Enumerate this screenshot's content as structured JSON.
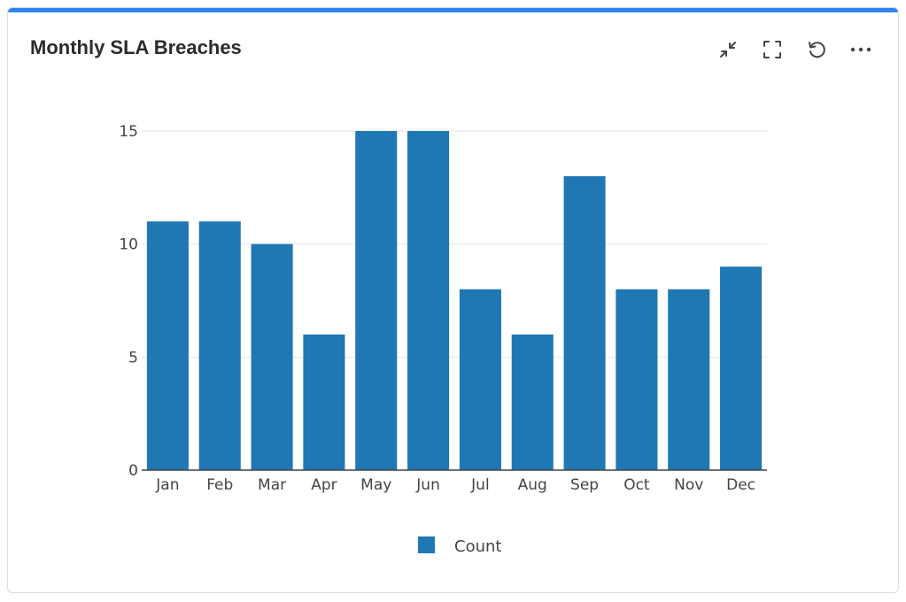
{
  "card": {
    "title": "Monthly SLA Breaches",
    "accent_color": "#2f86f0"
  },
  "toolbar": {
    "items": [
      {
        "icon": "collapse-icon",
        "label": "Collapse"
      },
      {
        "icon": "fullscreen-icon",
        "label": "Fullscreen"
      },
      {
        "icon": "refresh-icon",
        "label": "Refresh"
      },
      {
        "icon": "more-icon",
        "label": "More options"
      }
    ]
  },
  "chart_data": {
    "type": "bar",
    "categories": [
      "Jan",
      "Feb",
      "Mar",
      "Apr",
      "May",
      "Jun",
      "Jul",
      "Aug",
      "Sep",
      "Oct",
      "Nov",
      "Dec"
    ],
    "series": [
      {
        "name": "Count",
        "values": [
          11,
          11,
          10,
          6,
          15,
          15,
          8,
          6,
          13,
          8,
          8,
          9
        ],
        "color": "#1f77b4"
      }
    ],
    "title": "",
    "xlabel": "",
    "ylabel": "",
    "ylim": [
      0,
      15
    ],
    "yticks": [
      0,
      5,
      10,
      15
    ],
    "grid": true,
    "legend": "bottom-center"
  }
}
